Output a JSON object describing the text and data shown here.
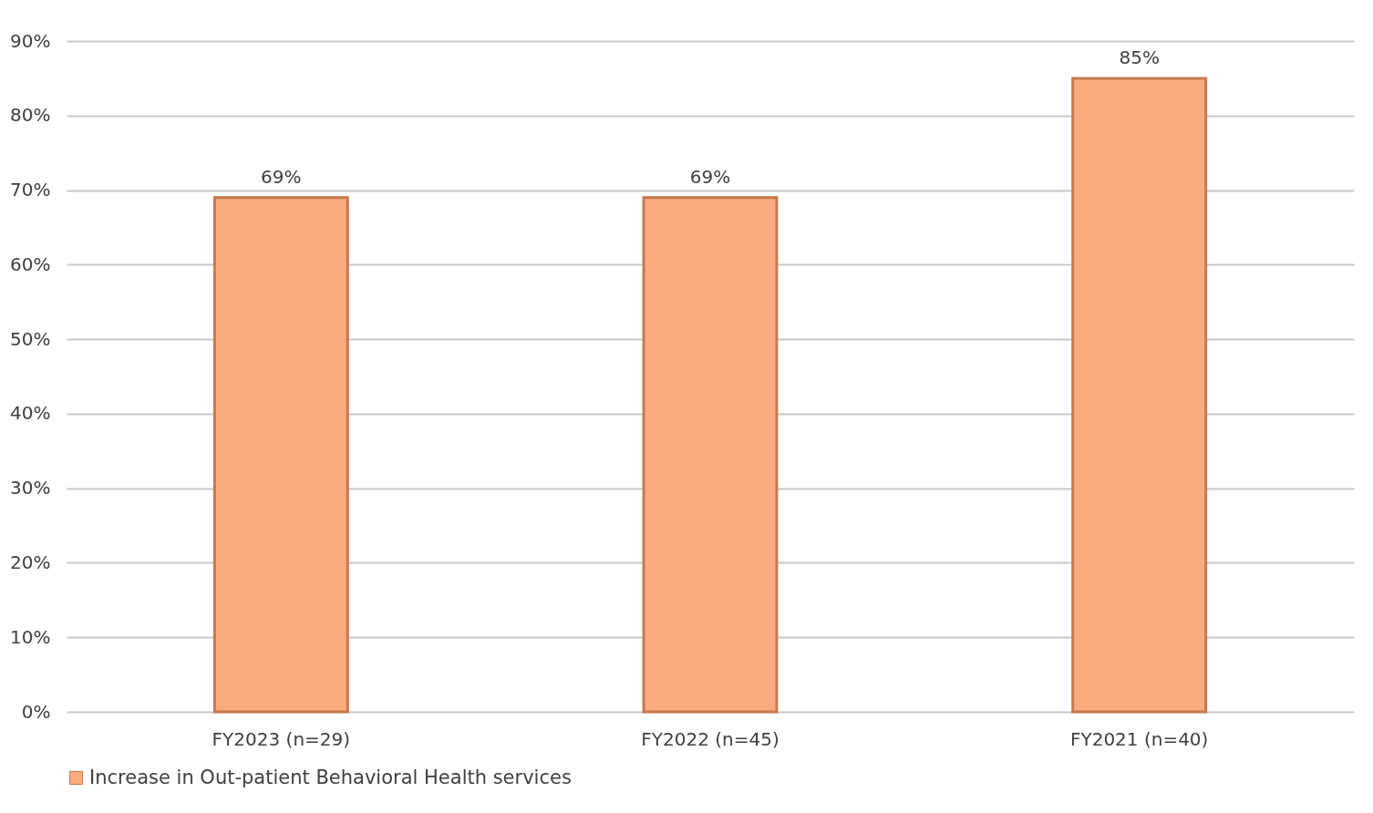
{
  "chart_data": {
    "type": "bar",
    "categories": [
      "FY2023 (n=29)",
      "FY2022 (n=45)",
      "FY2021 (n=40)"
    ],
    "series": [
      {
        "name": "Increase in Out-patient Behavioral Health services",
        "color": "#f9ad7e",
        "values": [
          69,
          69,
          85
        ]
      }
    ],
    "value_labels": [
      "69%",
      "69%",
      "85%"
    ],
    "ylim": [
      0,
      90
    ],
    "yticks": [
      {
        "value": 0,
        "label": "0%"
      },
      {
        "value": 10,
        "label": "10%"
      },
      {
        "value": 20,
        "label": "20%"
      },
      {
        "value": 30,
        "label": "30%"
      },
      {
        "value": 40,
        "label": "40%"
      },
      {
        "value": 50,
        "label": "50%"
      },
      {
        "value": 60,
        "label": "60%"
      },
      {
        "value": 70,
        "label": "70%"
      },
      {
        "value": 80,
        "label": "80%"
      },
      {
        "value": 90,
        "label": "90%"
      }
    ],
    "grid": "y",
    "legend": "bottom"
  }
}
